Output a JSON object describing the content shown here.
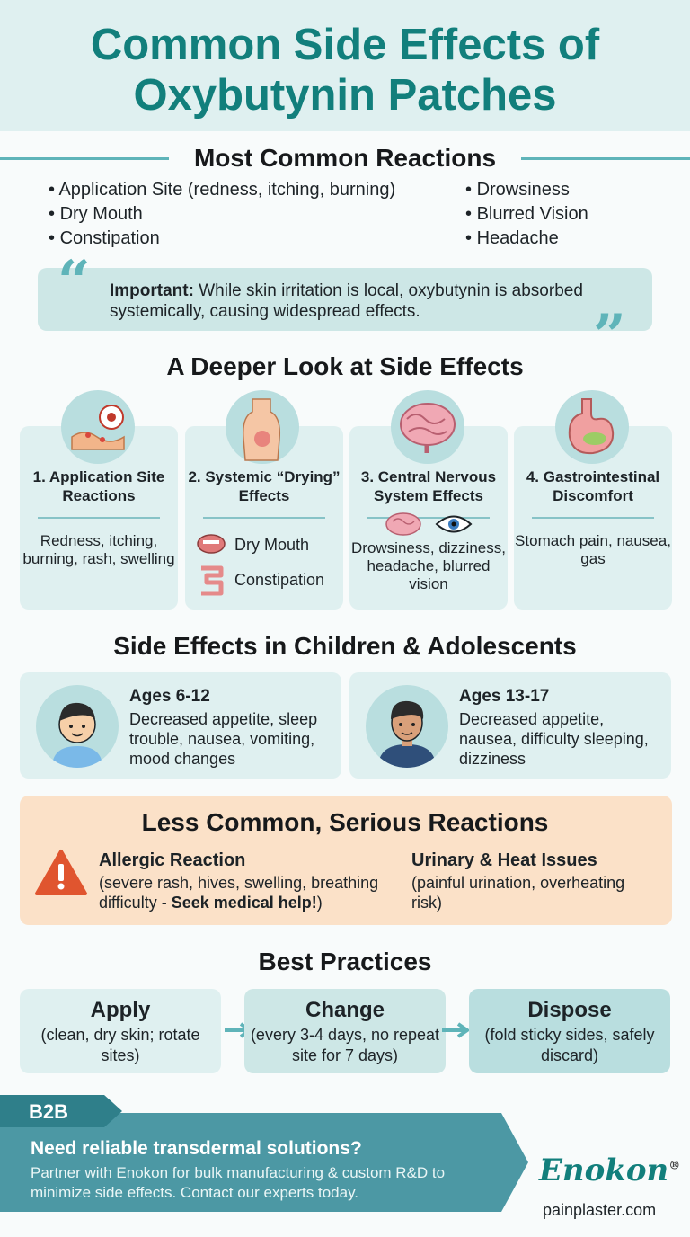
{
  "title": {
    "line1": "Common Side Effects of",
    "line2": "Oxybutynin Patches"
  },
  "common": {
    "heading": "Most Common Reactions",
    "left": [
      "Application Site (redness, itching, burning)",
      "Dry Mouth",
      "Constipation"
    ],
    "right": [
      "Drowsiness",
      "Blurred Vision",
      "Headache"
    ],
    "note_label": "Important:",
    "note_text": " While skin irritation is local, oxybutynin is absorbed systemically, causing widespread effects."
  },
  "deeper": {
    "heading": "A Deeper Look at Side Effects",
    "cards": [
      {
        "title": "1. Application Site Reactions",
        "desc": "Redness, itching, burning, rash, swelling"
      },
      {
        "title": "2. Systemic “Drying” Effects",
        "item1": "Dry Mouth",
        "item2": "Constipation"
      },
      {
        "title": "3. Central Nervous System Effects",
        "desc": "Drowsiness, dizziness, headache, blurred vision"
      },
      {
        "title": "4. Gastrointestinal Discomfort",
        "desc": "Stomach pain, nausea, gas"
      }
    ]
  },
  "children": {
    "heading": "Side Effects in Children & Adolescents",
    "groups": [
      {
        "age": "Ages 6-12",
        "desc": "Decreased appetite, sleep trouble, nausea, vomiting, mood changes"
      },
      {
        "age": "Ages 13-17",
        "desc": "Decreased appetite, nausea, difficulty sleeping, dizziness"
      }
    ]
  },
  "serious": {
    "heading": "Less Common, Serious Reactions",
    "allergic_title": "Allergic Reaction",
    "allergic_desc": "(severe rash, hives, swelling, breathing difficulty - ",
    "allergic_strong": "Seek medical help!",
    "allergic_end": ")",
    "urinary_title": "Urinary & Heat Issues",
    "urinary_desc": "(painful urination, overheating risk)"
  },
  "practices": {
    "heading": "Best Practices",
    "steps": [
      {
        "title": "Apply",
        "desc": "(clean, dry skin; rotate sites)"
      },
      {
        "title": "Change",
        "desc": "(every 3-4 days, no repeat site for 7 days)"
      },
      {
        "title": "Dispose",
        "desc": "(fold sticky sides, safely discard)"
      }
    ]
  },
  "footer": {
    "tag": "B2B",
    "headline": "Need reliable transdermal solutions?",
    "body": "Partner with Enokon for bulk manufacturing & custom R&D to minimize side effects. Contact our experts today.",
    "brand": "Enokon",
    "reg": "®",
    "url": "painplaster.com"
  },
  "colors": {
    "teal": "#127f7c",
    "panel": "#dff0f0",
    "circle": "#b9dedf",
    "orange": "#fbe1c8",
    "warning": "#e0552f"
  }
}
